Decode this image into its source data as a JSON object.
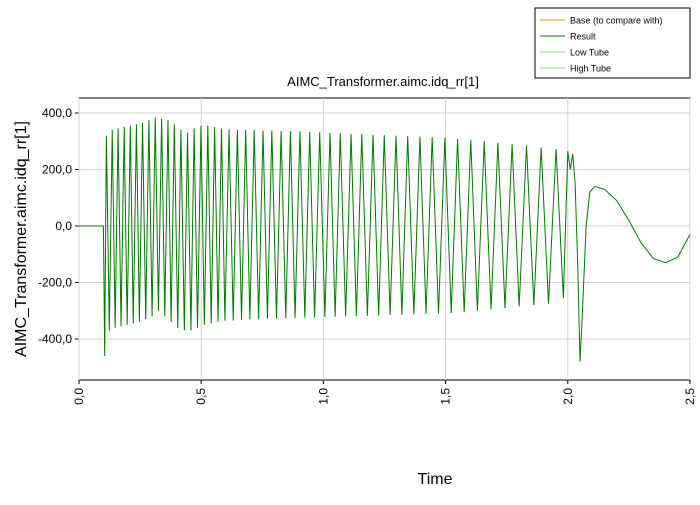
{
  "chart_data": {
    "type": "line",
    "title": "AIMC_Transformer.aimc.idq_rr[1]",
    "xlabel": "Time",
    "ylabel": "AIMC_Transformer.aimc.idq_rr[1]",
    "grid": true,
    "legend": "top-right",
    "xlim": [
      0,
      2.5
    ],
    "ylim": [
      -545,
      453
    ],
    "xticks": [
      {
        "value": 0,
        "label": "0,0"
      },
      {
        "value": 0.5,
        "label": "0,5"
      },
      {
        "value": 1,
        "label": "1,0"
      },
      {
        "value": 1.5,
        "label": "1,5"
      },
      {
        "value": 2,
        "label": "2,0"
      },
      {
        "value": 2.5,
        "label": "2,5"
      }
    ],
    "yticks": [
      {
        "value": -400,
        "label": "-400,0"
      },
      {
        "value": -200,
        "label": "-200,0"
      },
      {
        "value": 0,
        "label": "0,0"
      },
      {
        "value": 200,
        "label": "200,0"
      },
      {
        "value": 400,
        "label": "400,0"
      }
    ],
    "x": [
      0,
      0.1,
      0.105,
      0.112,
      0.124,
      0.136,
      0.148,
      0.16,
      0.172,
      0.185,
      0.197,
      0.21,
      0.222,
      0.235,
      0.247,
      0.26,
      0.273,
      0.286,
      0.299,
      0.312,
      0.325,
      0.338,
      0.351,
      0.364,
      0.377,
      0.39,
      0.404,
      0.417,
      0.431,
      0.444,
      0.458,
      0.471,
      0.485,
      0.499,
      0.513,
      0.527,
      0.541,
      0.555,
      0.569,
      0.583,
      0.597,
      0.614,
      0.631,
      0.648,
      0.665,
      0.682,
      0.699,
      0.717,
      0.735,
      0.753,
      0.771,
      0.789,
      0.808,
      0.827,
      0.846,
      0.865,
      0.884,
      0.904,
      0.924,
      0.944,
      0.964,
      0.985,
      1.006,
      1.027,
      1.048,
      1.069,
      1.091,
      1.113,
      1.135,
      1.157,
      1.18,
      1.203,
      1.226,
      1.249,
      1.273,
      1.297,
      1.321,
      1.345,
      1.37,
      1.395,
      1.42,
      1.445,
      1.471,
      1.497,
      1.523,
      1.549,
      1.576,
      1.603,
      1.63,
      1.658,
      1.686,
      1.714,
      1.743,
      1.772,
      1.801,
      1.831,
      1.861,
      1.891,
      1.921,
      1.952,
      1.982,
      2.0,
      2.01,
      2.02,
      2.03,
      2.04,
      2.05,
      2.06,
      2.075,
      2.09,
      2.11,
      2.15,
      2.2,
      2.25,
      2.3,
      2.35,
      2.4,
      2.45,
      2.5
    ],
    "series": [
      {
        "name": "Base (to compare with)",
        "color": "#ff8c00"
      },
      {
        "name": "Result",
        "color": "#007a00",
        "values": [
          0,
          0,
          -460,
          320,
          -370,
          340,
          -360,
          345,
          -355,
          350,
          -350,
          355,
          -345,
          360,
          -340,
          365,
          -330,
          375,
          -320,
          385,
          -300,
          380,
          -320,
          375,
          -340,
          360,
          -360,
          340,
          -370,
          330,
          -370,
          345,
          -360,
          355,
          -350,
          355,
          -345,
          350,
          -340,
          345,
          -335,
          342,
          -335,
          340,
          -332,
          340,
          -330,
          340,
          -330,
          338,
          -328,
          338,
          -328,
          336,
          -326,
          335,
          -325,
          335,
          -324,
          333,
          -323,
          332,
          -322,
          330,
          -321,
          328,
          -320,
          326,
          -319,
          325,
          -318,
          323,
          -317,
          321,
          -315,
          320,
          -314,
          318,
          -313,
          316,
          -311,
          314,
          -310,
          312,
          -308,
          308,
          -305,
          305,
          -300,
          300,
          -296,
          295,
          -290,
          290,
          -285,
          285,
          -280,
          278,
          -275,
          272,
          -255,
          265,
          200,
          255,
          150,
          -120,
          -480,
          -300,
          0,
          120,
          140,
          130,
          90,
          20,
          -60,
          -115,
          -130,
          -110,
          -30
        ]
      },
      {
        "name": "Low Tube",
        "color": "#8fe08f"
      },
      {
        "name": "High Tube",
        "color": "#8fe08f"
      }
    ]
  }
}
